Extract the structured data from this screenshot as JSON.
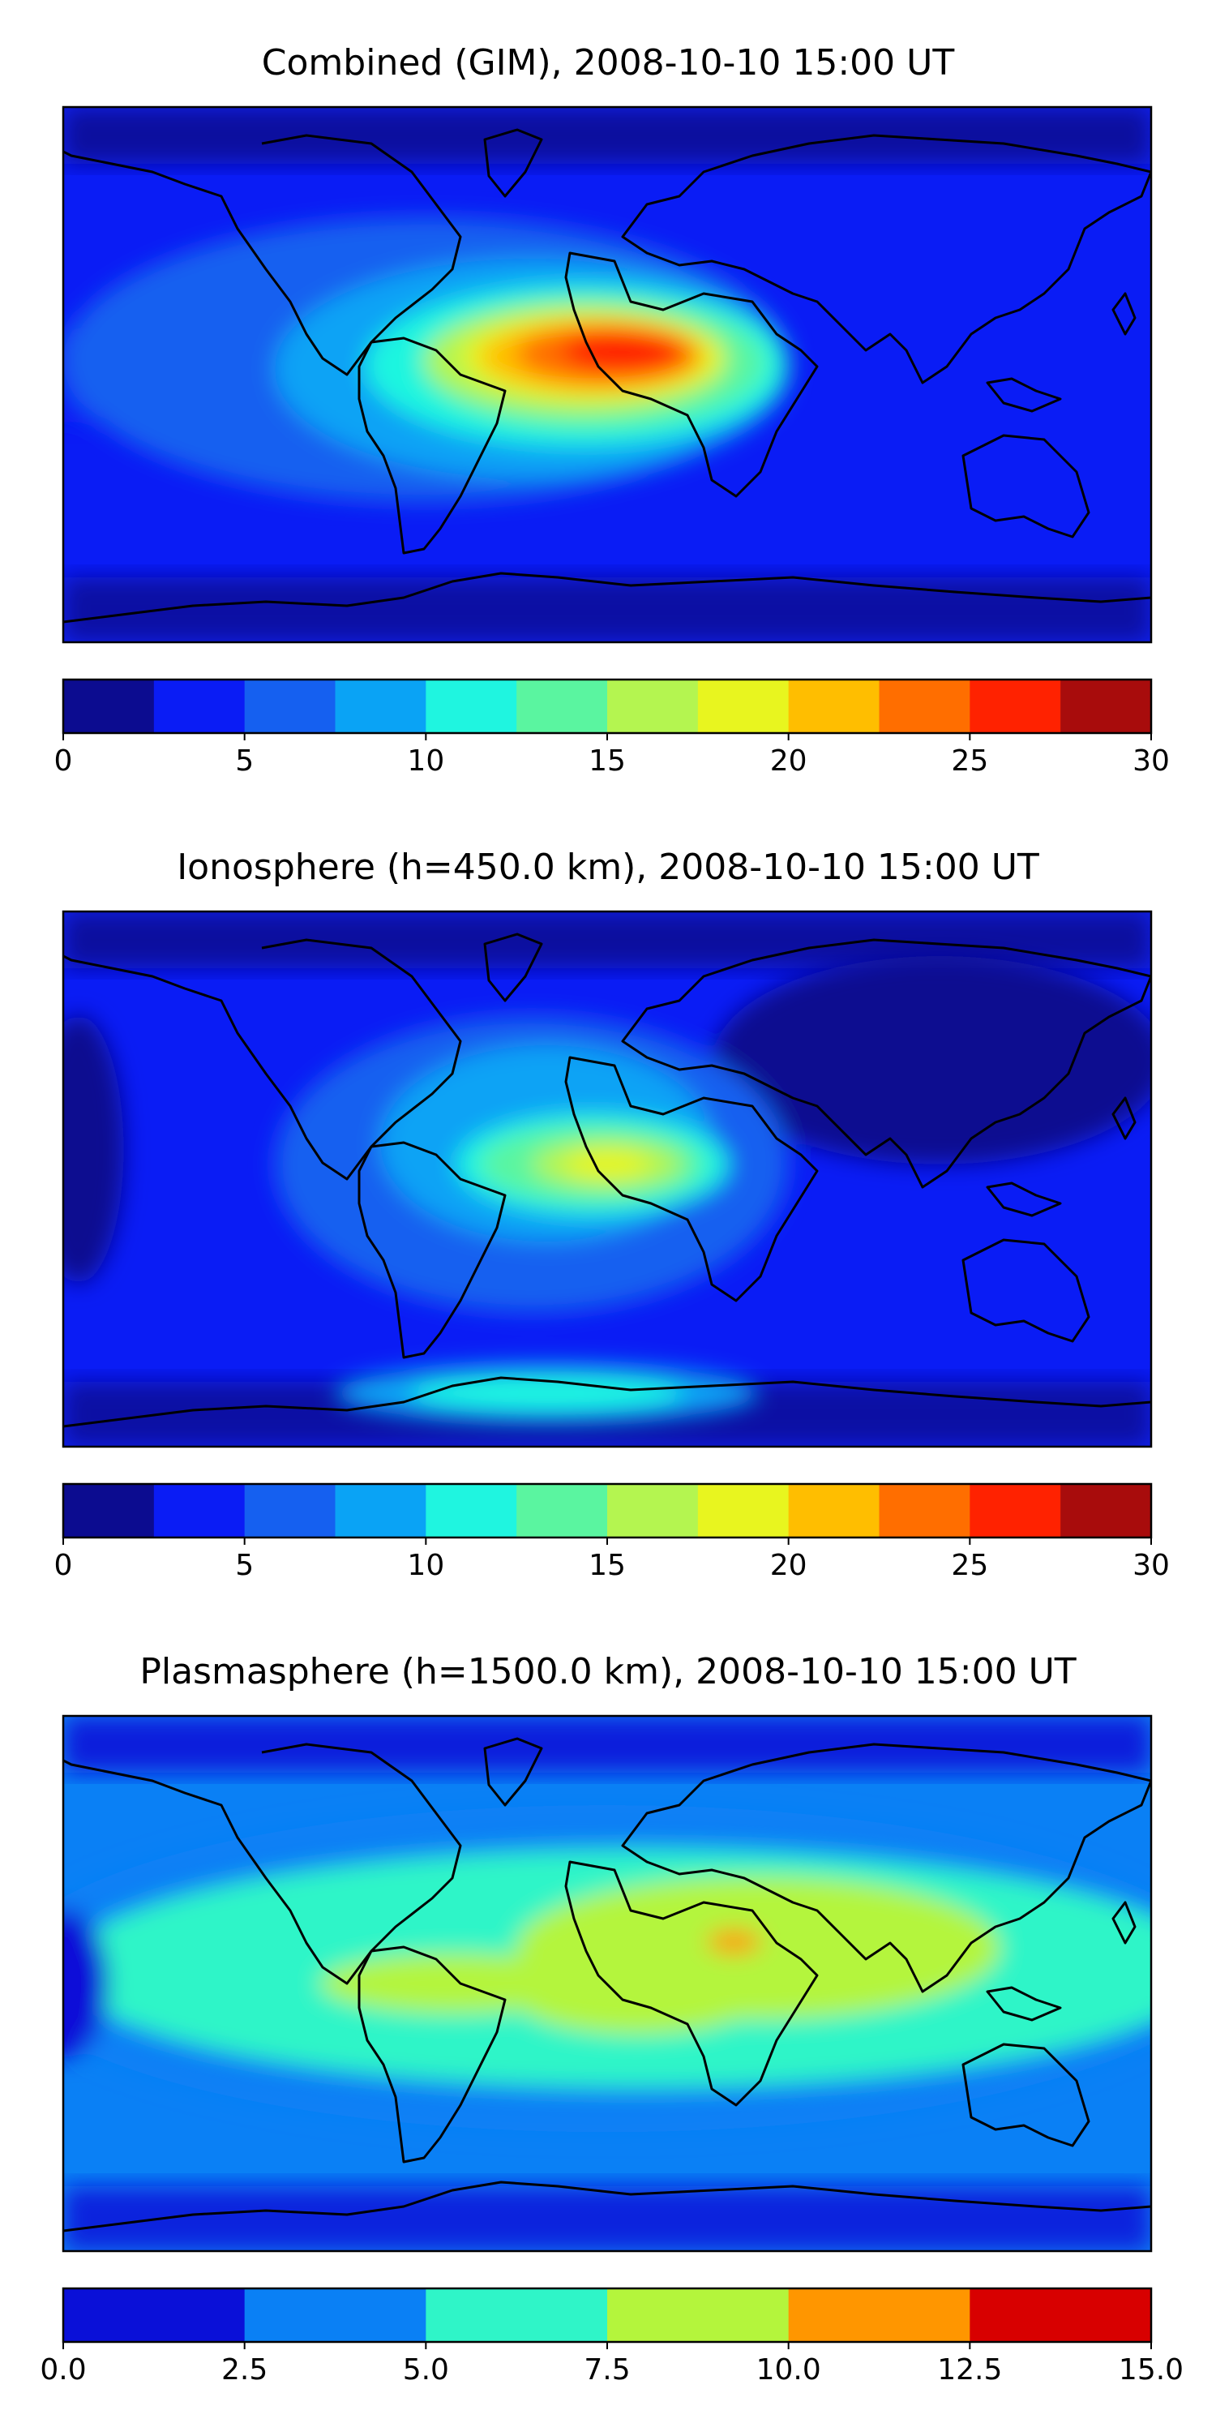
{
  "chart_data": [
    {
      "type": "contour-map",
      "title": "Combined (GIM), 2008-10-10 15:00 UT",
      "colorbar": {
        "range": [
          0,
          30
        ],
        "levels": [
          0,
          2.5,
          5,
          7.5,
          10,
          12.5,
          15,
          17.5,
          20,
          22.5,
          25,
          27.5,
          30
        ],
        "colors": [
          "#0c0c90",
          "#0a1cf5",
          "#1560f0",
          "#0aa3f5",
          "#1ff5e0",
          "#5af5a0",
          "#b4f550",
          "#e8f51f",
          "#ffbe00",
          "#ff6e00",
          "#ff2200",
          "#a80c0c"
        ],
        "ticks": [
          0,
          5,
          10,
          15,
          20,
          25,
          30
        ],
        "tick_labels": [
          "0",
          "5",
          "10",
          "15",
          "20",
          "25",
          "30"
        ]
      },
      "regions": [
        {
          "value": 3.5,
          "lon": -180,
          "lat": 0,
          "rx": 45,
          "ry": 16
        },
        {
          "value": 6,
          "lon": -60,
          "lat": 5,
          "rx": 120,
          "ry": 48
        },
        {
          "value": 8.5,
          "lon": -25,
          "lat": 2,
          "rx": 85,
          "ry": 37
        },
        {
          "value": 11,
          "lon": -10,
          "lat": 3,
          "rx": 70,
          "ry": 27
        },
        {
          "value": 13.5,
          "lon": -5,
          "lat": 4,
          "rx": 57,
          "ry": 22
        },
        {
          "value": 16,
          "lon": -10,
          "lat": 5,
          "rx": 50,
          "ry": 18
        },
        {
          "value": 18.5,
          "lon": -5,
          "lat": 6,
          "rx": 43,
          "ry": 15
        },
        {
          "value": 21,
          "lon": -5,
          "lat": 6,
          "rx": 37,
          "ry": 12
        },
        {
          "value": 23.5,
          "lon": 0,
          "lat": 7,
          "rx": 30,
          "ry": 10
        },
        {
          "value": 26,
          "lon": 5,
          "lat": 8,
          "rx": 20,
          "ry": 7
        }
      ]
    },
    {
      "type": "contour-map",
      "title": "Ionosphere  (h=450.0 km), 2008-10-10 15:00 UT",
      "colorbar": {
        "range": [
          0,
          30
        ],
        "levels": [
          0,
          2.5,
          5,
          7.5,
          10,
          12.5,
          15,
          17.5,
          20,
          22.5,
          25,
          27.5,
          30
        ],
        "colors": [
          "#0c0c90",
          "#0a1cf5",
          "#1560f0",
          "#0aa3f5",
          "#1ff5e0",
          "#5af5a0",
          "#b4f550",
          "#e8f51f",
          "#ffbe00",
          "#ff6e00",
          "#ff2200",
          "#a80c0c"
        ],
        "ticks": [
          0,
          5,
          10,
          15,
          20,
          25,
          30
        ],
        "tick_labels": [
          "0",
          "5",
          "10",
          "15",
          "20",
          "25",
          "30"
        ]
      },
      "regions": [
        {
          "value": 1.5,
          "lon": 110,
          "lat": 40,
          "rx": 75,
          "ry": 35
        },
        {
          "value": 1.5,
          "lon": -175,
          "lat": 10,
          "rx": 15,
          "ry": 45
        },
        {
          "value": 6,
          "lon": -25,
          "lat": 5,
          "rx": 85,
          "ry": 50
        },
        {
          "value": 8.5,
          "lon": -20,
          "lat": 12,
          "rx": 55,
          "ry": 33
        },
        {
          "value": 11,
          "lon": -5,
          "lat": 5,
          "rx": 45,
          "ry": 17
        },
        {
          "value": 13.5,
          "lon": -5,
          "lat": 5,
          "rx": 37,
          "ry": 13
        },
        {
          "value": 16,
          "lon": 0,
          "lat": 5,
          "rx": 25,
          "ry": 8
        },
        {
          "value": 18.5,
          "lon": 0,
          "lat": 5,
          "rx": 14,
          "ry": 5
        },
        {
          "value": 8.5,
          "lon": -20,
          "lat": -72,
          "rx": 70,
          "ry": 10
        },
        {
          "value": 11,
          "lon": -20,
          "lat": -72,
          "rx": 45,
          "ry": 6
        }
      ]
    },
    {
      "type": "contour-map",
      "title": "Plasmasphere (h=1500.0 km), 2008-10-10 15:00 UT",
      "colorbar": {
        "range": [
          0,
          15
        ],
        "levels": [
          0,
          2.5,
          5,
          7.5,
          10,
          12.5,
          15
        ],
        "colors": [
          "#0a10d8",
          "#0a80f5",
          "#2ff5c8",
          "#b4f53c",
          "#ff9600",
          "#d80000"
        ],
        "ticks": [
          0,
          2.5,
          5,
          7.5,
          10,
          12.5,
          15
        ],
        "tick_labels": [
          "0.0",
          "2.5",
          "5.0",
          "7.5",
          "10.0",
          "12.5",
          "15.0"
        ]
      },
      "regions": [
        {
          "value": 4,
          "lon": 0,
          "lat": 5,
          "rx": 200,
          "ry": 55
        },
        {
          "value": 6,
          "lon": 10,
          "lat": 5,
          "rx": 190,
          "ry": 40
        },
        {
          "value": 8.75,
          "lon": 50,
          "lat": 12,
          "rx": 80,
          "ry": 24
        },
        {
          "value": 8.75,
          "lon": -50,
          "lat": 0,
          "rx": 45,
          "ry": 10
        },
        {
          "value": 8.75,
          "lon": 10,
          "lat": -5,
          "rx": 40,
          "ry": 12
        },
        {
          "value": 11.25,
          "lon": 42,
          "lat": 14,
          "rx": 9,
          "ry": 4
        },
        {
          "value": 1,
          "lon": -180,
          "lat": 0,
          "rx": 15,
          "ry": 25
        }
      ]
    }
  ]
}
